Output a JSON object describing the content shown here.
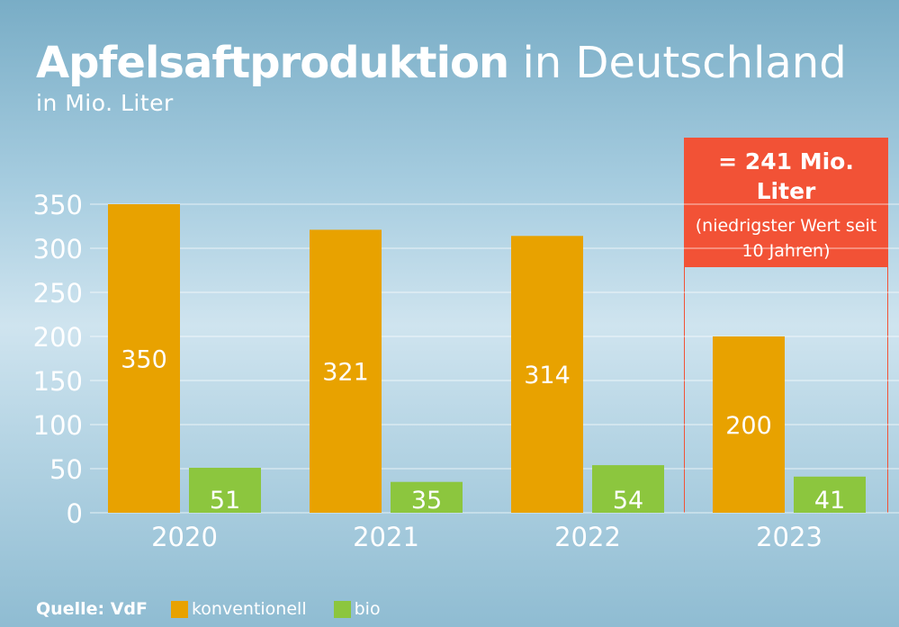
{
  "title": {
    "bold": "Apfelsaftproduktion",
    "regular": "in Deutschland"
  },
  "subtitle": "in Mio. Liter",
  "callout": {
    "headline": "= 241 Mio. Liter",
    "note": "(niedrigster Wert seit 10 Jahren)"
  },
  "legend": {
    "source": "Quelle: VdF",
    "items": [
      {
        "label": "konventionell",
        "color": "#e8a200"
      },
      {
        "label": "bio",
        "color": "#8cc63e"
      }
    ]
  },
  "colors": {
    "konventionell": "#e8a200",
    "bio": "#8cc63e",
    "highlight": "#f25236"
  },
  "chart_data": {
    "type": "bar",
    "categories": [
      "2020",
      "2021",
      "2022",
      "2023"
    ],
    "series": [
      {
        "name": "konventionell",
        "values": [
          350,
          321,
          314,
          200
        ]
      },
      {
        "name": "bio",
        "values": [
          51,
          35,
          54,
          41
        ]
      }
    ],
    "yticks": [
      0,
      50,
      100,
      150,
      200,
      250,
      300,
      350
    ],
    "ylim": [
      0,
      350
    ],
    "grid": true,
    "highlight_category": "2023"
  }
}
